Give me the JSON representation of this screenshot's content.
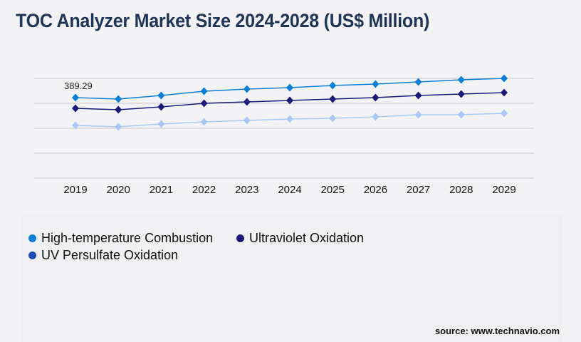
{
  "title": "TOC Analyzer Market Size 2024-2028 (US$ Million)",
  "source": "source: www.technavio.com",
  "chart_data": {
    "type": "line",
    "title": "TOC Analyzer Market Size 2024-2028 (US$ Million)",
    "categories": [
      "2019",
      "2020",
      "2021",
      "2022",
      "2023",
      "2024",
      "2025",
      "2026",
      "2027",
      "2028",
      "2029"
    ],
    "ylim": [
      0,
      482.3
    ],
    "grid": true,
    "legend_position": "bottom",
    "annotations": [
      {
        "series": 0,
        "index": 0,
        "text": "389.29"
      }
    ],
    "series": [
      {
        "name": "High-temperature Combustion",
        "color": "#0a7fd6",
        "marker_color": "#0a7fd6",
        "values": [
          389.29,
          382.4,
          399.6,
          420.3,
          430.6,
          437.5,
          447.8,
          454.7,
          465.1,
          475.4,
          482.3
        ]
      },
      {
        "name": "Ultraviolet Oxidation",
        "color": "#1a1a78",
        "marker_color": "#1a1a78",
        "values": [
          337.6,
          330.7,
          344.5,
          361.7,
          368.6,
          375.5,
          382.4,
          389.3,
          399.6,
          406.5,
          413.4
        ]
      },
      {
        "name": "UV Persulfate Oxidation",
        "color": "#a9c9f5",
        "marker_color": "#1f4fb5",
        "values": [
          254.9,
          248.0,
          261.8,
          272.2,
          279.0,
          285.9,
          289.4,
          296.3,
          306.6,
          306.6,
          313.5
        ]
      }
    ]
  }
}
